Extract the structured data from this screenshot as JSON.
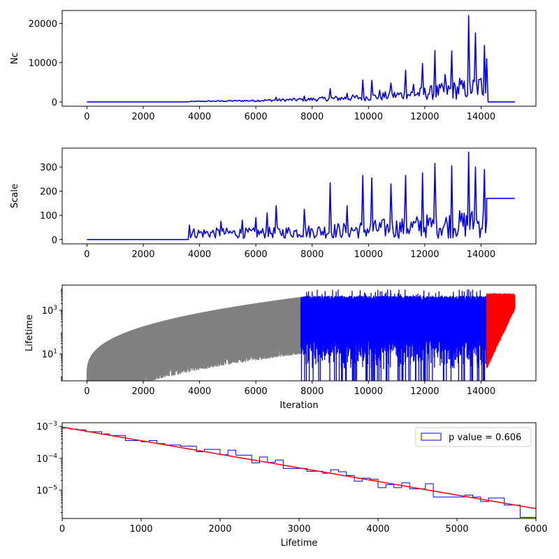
{
  "chart_data": [
    {
      "id": "nc",
      "type": "line",
      "ylabel": "Nc",
      "xlabel": "",
      "xlim": [
        -880,
        15950
      ],
      "ylim": [
        -1100,
        23300
      ],
      "x_ticks": [
        0,
        2000,
        4000,
        6000,
        8000,
        10000,
        12000,
        14000
      ],
      "x_tick_labels": [
        "0",
        "2000",
        "4000",
        "6000",
        "8000",
        "10000",
        "12000",
        "14000"
      ],
      "y_ticks": [
        0,
        10000,
        20000
      ],
      "y_tick_labels": [
        "0",
        "10000",
        "20000"
      ],
      "series": [
        {
          "color": "#0000ff",
          "baseline": [
            [
              0,
              0
            ],
            [
              3600,
              0
            ],
            [
              3600,
              80
            ],
            [
              6000,
              250
            ],
            [
              8000,
              500
            ],
            [
              10000,
              900
            ],
            [
              12000,
              1700
            ],
            [
              13500,
              2500
            ],
            [
              14200,
              3000
            ]
          ],
          "noise": [
            [
              3600,
              80
            ],
            [
              6000,
              250
            ],
            [
              8000,
              500
            ],
            [
              10000,
              900
            ],
            [
              12000,
              1700
            ],
            [
              14200,
              3200
            ]
          ],
          "spikes": [
            [
              6700,
              1200
            ],
            [
              7700,
              1500
            ],
            [
              8650,
              3400
            ],
            [
              9250,
              2200
            ],
            [
              9800,
              5600
            ],
            [
              10100,
              5500
            ],
            [
              10400,
              3000
            ],
            [
              10800,
              4800
            ],
            [
              11300,
              8100
            ],
            [
              11600,
              4500
            ],
            [
              11900,
              9800
            ],
            [
              12350,
              13100
            ],
            [
              12700,
              7000
            ],
            [
              12950,
              13000
            ],
            [
              13250,
              6000
            ],
            [
              13550,
              22000
            ],
            [
              13800,
              17600
            ],
            [
              14000,
              6000
            ],
            [
              14100,
              14400
            ],
            [
              14200,
              11000
            ]
          ],
          "tail": [
            [
              14250,
              0
            ],
            [
              15200,
              0
            ]
          ]
        }
      ]
    },
    {
      "id": "scale",
      "type": "line",
      "ylabel": "Scale",
      "xlabel": "",
      "xlim": [
        -880,
        15950
      ],
      "ylim": [
        -18,
        378
      ],
      "x_ticks": [
        0,
        2000,
        4000,
        6000,
        8000,
        10000,
        12000,
        14000
      ],
      "x_tick_labels": [
        "0",
        "2000",
        "4000",
        "6000",
        "8000",
        "10000",
        "12000",
        "14000"
      ],
      "y_ticks": [
        0,
        100,
        200,
        300
      ],
      "y_tick_labels": [
        "0",
        "100",
        "200",
        "300"
      ],
      "series": [
        {
          "color": "#0000ff",
          "baseline": [
            [
              0,
              0
            ],
            [
              3600,
              0
            ],
            [
              3600,
              20
            ],
            [
              6000,
              20
            ],
            [
              8000,
              25
            ],
            [
              10000,
              30
            ],
            [
              12000,
              40
            ],
            [
              14200,
              50
            ]
          ],
          "noise": [
            [
              3600,
              22
            ],
            [
              6000,
              22
            ],
            [
              8000,
              28
            ],
            [
              10000,
              38
            ],
            [
              12000,
              50
            ],
            [
              14200,
              65
            ]
          ],
          "spikes": [
            [
              3650,
              60
            ],
            [
              4750,
              75
            ],
            [
              5500,
              80
            ],
            [
              6000,
              90
            ],
            [
              6400,
              110
            ],
            [
              6700,
              140
            ],
            [
              7700,
              125
            ],
            [
              8650,
              235
            ],
            [
              9250,
              140
            ],
            [
              9800,
              265
            ],
            [
              10100,
              255
            ],
            [
              10800,
              230
            ],
            [
              11300,
              265
            ],
            [
              11900,
              275
            ],
            [
              12350,
              315
            ],
            [
              12950,
              305
            ],
            [
              13550,
              362
            ],
            [
              13800,
              300
            ],
            [
              14100,
              290
            ]
          ],
          "tail": [
            [
              14200,
              170
            ],
            [
              15200,
              170
            ]
          ]
        }
      ]
    },
    {
      "id": "lifetime",
      "type": "line",
      "ylabel": "Lifetime",
      "xlabel": "Iteration",
      "yscale": "log",
      "xlim": [
        -880,
        15950
      ],
      "ylim": [
        0.6,
        14000
      ],
      "x_ticks": [
        0,
        2000,
        4000,
        6000,
        8000,
        10000,
        12000,
        14000
      ],
      "x_tick_labels": [
        "0",
        "2000",
        "4000",
        "6000",
        "8000",
        "10000",
        "12000",
        "14000"
      ],
      "y_ticks": [
        10,
        1000
      ],
      "series": [
        {
          "color": "#808080",
          "range": [
            0,
            7600
          ],
          "envelope": "growing",
          "top_start": 1,
          "top_end": 4000
        },
        {
          "color": "#0000ff",
          "range": [
            7600,
            14200
          ],
          "envelope": "flat",
          "top": 3500,
          "top_spikes": 9000
        },
        {
          "color": "#ff0000",
          "range": [
            14200,
            15200
          ],
          "envelope": "converging",
          "low_start": 3,
          "top": 6000
        }
      ]
    },
    {
      "id": "histogram",
      "type": "step-histogram",
      "xlabel": "Lifetime",
      "ylabel": "",
      "yscale": "log",
      "xlim": [
        0,
        6000
      ],
      "ylim": [
        1.3e-06,
        0.0013
      ],
      "x_ticks": [
        0,
        1000,
        2000,
        3000,
        4000,
        5000,
        6000
      ],
      "x_tick_labels": [
        "0",
        "1000",
        "2000",
        "3000",
        "4000",
        "5000",
        "6000"
      ],
      "y_ticks": [
        1e-05,
        0.0001,
        0.001
      ],
      "bin_edges": [
        0,
        100,
        200,
        300,
        400,
        500,
        600,
        700,
        800,
        900,
        1000,
        1100,
        1200,
        1300,
        1400,
        1500,
        1600,
        1700,
        1800,
        1900,
        2000,
        2100,
        2200,
        2300,
        2400,
        2500,
        2600,
        2700,
        2800,
        2900,
        3000,
        3100,
        3200,
        3300,
        3400,
        3500,
        3600,
        3700,
        3800,
        3900,
        4000,
        4100,
        4200,
        4300,
        4400,
        4500,
        4600,
        4700,
        4800,
        4900,
        5000,
        5100,
        5200,
        5300,
        5400,
        5500,
        5600,
        5700,
        5800,
        5900,
        6000
      ],
      "hist_values": [
        0.00088,
        0.00082,
        0.00078,
        0.00068,
        0.00068,
        0.00058,
        0.00052,
        0.00052,
        0.00036,
        0.00036,
        0.00033,
        0.00036,
        0.00029,
        0.00026,
        0.00026,
        0.00024,
        0.00024,
        0.00016,
        0.00019,
        0.00019,
        0.00013,
        0.00018,
        0.000125,
        0.000125,
        7.2e-05,
        0.00011,
        7.5e-05,
        8.8e-05,
        4.8e-05,
        4.8e-05,
        4.8e-05,
        3.9e-05,
        3.9e-05,
        3.4e-05,
        4.4e-05,
        3.8e-05,
        2.9e-05,
        1.9e-05,
        2.4e-05,
        2.2e-05,
        1.2e-05,
        1.5e-05,
        1.2e-05,
        1.7e-05,
        1.1e-05,
        1.1e-05,
        1.6e-05,
        6.1e-06,
        6.1e-06,
        6.1e-06,
        6.1e-06,
        7e-06,
        6.1e-06,
        4.4e-06,
        5.7e-06,
        5.7e-06,
        3.4e-06,
        3.4e-06,
        1.4e-06,
        1.4e-06
      ],
      "fit": {
        "color": "#ff0000",
        "a": 0.00095,
        "tau": 1020
      },
      "hist_color": "#0000ff",
      "legend": {
        "label": "p value = 0.606",
        "placement": "top-right"
      }
    }
  ]
}
